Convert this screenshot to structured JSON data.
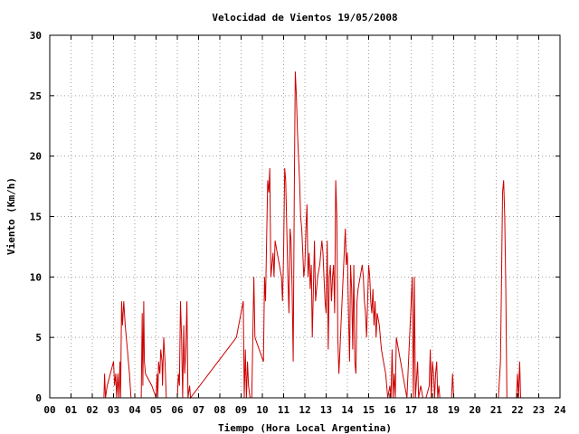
{
  "chart_data": {
    "type": "line",
    "title": "Velocidad de Vientos 19/05/2008",
    "xlabel": "Tiempo (Hora Local Argentina)",
    "ylabel": "Viento (Km/h)",
    "xlim": [
      0,
      24
    ],
    "ylim": [
      0,
      30
    ],
    "x_ticks": [
      "00",
      "01",
      "02",
      "03",
      "04",
      "05",
      "06",
      "07",
      "08",
      "09",
      "10",
      "11",
      "12",
      "13",
      "14",
      "15",
      "16",
      "17",
      "18",
      "19",
      "20",
      "21",
      "22",
      "23",
      "24"
    ],
    "y_ticks": [
      "0",
      "5",
      "10",
      "15",
      "20",
      "25",
      "30"
    ],
    "grid": true,
    "line_color": "#cc0000",
    "series": [
      {
        "points": [
          [
            2.55,
            0
          ],
          [
            2.58,
            2
          ],
          [
            2.62,
            0
          ],
          [
            2.7,
            1
          ],
          [
            3.0,
            3
          ],
          [
            3.05,
            1
          ],
          [
            3.1,
            2
          ],
          [
            3.15,
            0
          ],
          [
            3.2,
            2
          ],
          [
            3.25,
            0
          ],
          [
            3.3,
            3
          ],
          [
            3.33,
            0
          ],
          [
            3.38,
            8
          ],
          [
            3.42,
            6
          ],
          [
            3.48,
            8
          ],
          [
            3.55,
            6
          ],
          [
            3.65,
            4
          ],
          [
            3.75,
            2
          ],
          [
            3.82,
            0
          ],
          [
            3.9,
            0
          ],
          [
            4.3,
            0
          ],
          [
            4.35,
            7
          ],
          [
            4.38,
            1
          ],
          [
            4.42,
            8
          ],
          [
            4.45,
            3
          ],
          [
            4.5,
            2
          ],
          [
            4.8,
            1
          ],
          [
            5.0,
            0
          ],
          [
            5.05,
            2
          ],
          [
            5.08,
            0
          ],
          [
            5.12,
            3
          ],
          [
            5.18,
            2
          ],
          [
            5.22,
            4
          ],
          [
            5.28,
            3
          ],
          [
            5.3,
            1
          ],
          [
            5.36,
            5
          ],
          [
            5.42,
            3
          ],
          [
            5.48,
            0
          ],
          [
            6.0,
            0
          ],
          [
            6.05,
            2
          ],
          [
            6.1,
            1
          ],
          [
            6.15,
            8
          ],
          [
            6.2,
            5
          ],
          [
            6.25,
            0
          ],
          [
            6.3,
            6
          ],
          [
            6.35,
            2
          ],
          [
            6.4,
            4
          ],
          [
            6.45,
            8
          ],
          [
            6.5,
            0
          ],
          [
            6.58,
            1
          ],
          [
            6.62,
            0
          ],
          [
            8.78,
            5
          ],
          [
            9.1,
            8
          ],
          [
            9.15,
            0
          ],
          [
            9.2,
            4
          ],
          [
            9.25,
            0
          ],
          [
            9.3,
            3
          ],
          [
            9.35,
            1
          ],
          [
            9.42,
            0
          ],
          [
            9.5,
            0
          ],
          [
            9.6,
            10
          ],
          [
            9.65,
            5
          ],
          [
            10.05,
            3
          ],
          [
            10.1,
            10
          ],
          [
            10.15,
            8
          ],
          [
            10.2,
            13
          ],
          [
            10.25,
            18
          ],
          [
            10.3,
            17
          ],
          [
            10.35,
            19
          ],
          [
            10.4,
            10
          ],
          [
            10.45,
            11
          ],
          [
            10.5,
            12
          ],
          [
            10.55,
            10
          ],
          [
            10.6,
            13
          ],
          [
            10.7,
            12
          ],
          [
            10.8,
            11
          ],
          [
            10.9,
            10
          ],
          [
            10.95,
            8
          ],
          [
            11.0,
            12
          ],
          [
            11.05,
            19
          ],
          [
            11.1,
            18
          ],
          [
            11.15,
            14
          ],
          [
            11.2,
            10
          ],
          [
            11.25,
            7
          ],
          [
            11.3,
            14
          ],
          [
            11.35,
            13
          ],
          [
            11.4,
            9
          ],
          [
            11.45,
            3
          ],
          [
            11.5,
            17
          ],
          [
            11.55,
            27
          ],
          [
            11.6,
            25
          ],
          [
            11.65,
            22
          ],
          [
            11.7,
            20
          ],
          [
            11.75,
            18
          ],
          [
            11.8,
            15
          ],
          [
            11.85,
            14
          ],
          [
            11.9,
            12
          ],
          [
            11.95,
            10
          ],
          [
            12.0,
            11
          ],
          [
            12.05,
            14
          ],
          [
            12.1,
            16
          ],
          [
            12.15,
            10
          ],
          [
            12.2,
            12
          ],
          [
            12.25,
            9
          ],
          [
            12.3,
            11
          ],
          [
            12.35,
            5
          ],
          [
            12.4,
            9
          ],
          [
            12.45,
            13
          ],
          [
            12.5,
            8
          ],
          [
            12.6,
            10
          ],
          [
            12.7,
            11
          ],
          [
            12.8,
            13
          ],
          [
            12.85,
            12
          ],
          [
            12.9,
            10
          ],
          [
            12.95,
            8
          ],
          [
            13.0,
            7
          ],
          [
            13.05,
            13
          ],
          [
            13.1,
            4
          ],
          [
            13.15,
            10
          ],
          [
            13.2,
            11
          ],
          [
            13.25,
            8
          ],
          [
            13.3,
            10
          ],
          [
            13.35,
            11
          ],
          [
            13.4,
            7
          ],
          [
            13.45,
            18
          ],
          [
            13.5,
            15
          ],
          [
            13.55,
            5
          ],
          [
            13.6,
            2
          ],
          [
            13.65,
            4
          ],
          [
            13.7,
            6
          ],
          [
            13.8,
            10
          ],
          [
            13.85,
            12
          ],
          [
            13.9,
            14
          ],
          [
            13.95,
            11
          ],
          [
            14.0,
            12
          ],
          [
            14.05,
            7
          ],
          [
            14.1,
            3
          ],
          [
            14.15,
            11
          ],
          [
            14.2,
            9
          ],
          [
            14.25,
            4
          ],
          [
            14.3,
            11
          ],
          [
            14.35,
            3
          ],
          [
            14.4,
            2
          ],
          [
            14.45,
            8
          ],
          [
            14.5,
            9
          ],
          [
            14.6,
            10
          ],
          [
            14.7,
            11
          ],
          [
            14.75,
            10
          ],
          [
            14.8,
            8
          ],
          [
            14.85,
            7
          ],
          [
            14.9,
            5
          ],
          [
            15.0,
            11
          ],
          [
            15.05,
            10
          ],
          [
            15.1,
            8
          ],
          [
            15.15,
            7
          ],
          [
            15.2,
            9
          ],
          [
            15.25,
            6
          ],
          [
            15.3,
            8
          ],
          [
            15.35,
            5
          ],
          [
            15.4,
            7
          ],
          [
            15.5,
            6
          ],
          [
            15.6,
            4
          ],
          [
            15.7,
            3
          ],
          [
            15.8,
            2
          ],
          [
            15.9,
            0
          ],
          [
            16.0,
            1
          ],
          [
            16.05,
            0
          ],
          [
            16.1,
            4
          ],
          [
            16.15,
            0
          ],
          [
            16.2,
            2
          ],
          [
            16.25,
            0
          ],
          [
            16.3,
            5
          ],
          [
            16.4,
            4
          ],
          [
            16.5,
            3
          ],
          [
            16.6,
            2
          ],
          [
            16.7,
            1
          ],
          [
            16.8,
            0
          ],
          [
            17.05,
            10
          ],
          [
            17.1,
            0
          ],
          [
            17.15,
            10
          ],
          [
            17.2,
            0
          ],
          [
            17.3,
            3
          ],
          [
            17.35,
            0
          ],
          [
            17.45,
            1
          ],
          [
            17.55,
            0
          ],
          [
            17.7,
            0
          ],
          [
            17.85,
            1
          ],
          [
            17.9,
            4
          ],
          [
            17.95,
            0
          ],
          [
            18.0,
            3
          ],
          [
            18.05,
            2
          ],
          [
            18.1,
            0
          ],
          [
            18.15,
            2
          ],
          [
            18.2,
            3
          ],
          [
            18.25,
            0
          ],
          [
            18.3,
            1
          ],
          [
            18.35,
            0
          ],
          [
            18.9,
            0
          ],
          [
            18.95,
            2
          ],
          [
            19.0,
            0
          ],
          [
            21.1,
            0
          ],
          [
            21.2,
            3
          ],
          [
            21.25,
            10
          ],
          [
            21.3,
            17
          ],
          [
            21.35,
            18
          ],
          [
            21.4,
            15
          ],
          [
            21.45,
            9
          ],
          [
            21.5,
            0
          ],
          [
            21.95,
            0
          ],
          [
            22.0,
            2
          ],
          [
            22.05,
            0
          ],
          [
            22.1,
            3
          ],
          [
            22.15,
            0
          ]
        ]
      }
    ]
  }
}
